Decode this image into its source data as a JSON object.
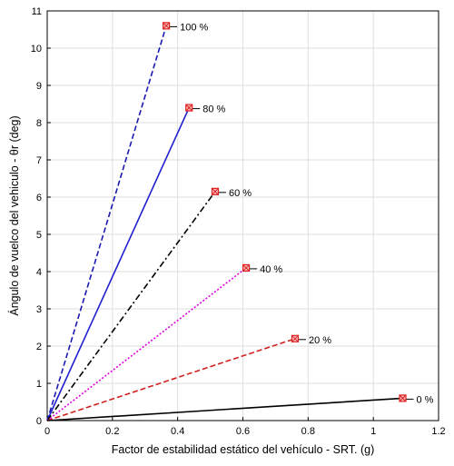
{
  "chart_data": {
    "type": "line",
    "title": "",
    "xlabel": "Factor de estabilidad estático del vehículo - SRT. (g)",
    "ylabel": "Ángulo de vuelco del vehiculo - θr (deg)",
    "xlim": [
      0,
      1.2
    ],
    "ylim": [
      0,
      11
    ],
    "xticks": [
      "0",
      "0.2",
      "0.4",
      "0.6",
      "0.8",
      "1",
      "1.2"
    ],
    "yticks": [
      "0",
      "1",
      "2",
      "3",
      "4",
      "5",
      "6",
      "7",
      "8",
      "9",
      "10",
      "11"
    ],
    "grid": true,
    "series": [
      {
        "label": "100 %",
        "x": [
          0,
          0.365
        ],
        "y": [
          0,
          10.6
        ],
        "color": "#1a1ab0",
        "style": "dashed"
      },
      {
        "label": "80 %",
        "x": [
          0,
          0.435
        ],
        "y": [
          0,
          8.4
        ],
        "color": "#2020d0",
        "style": "solid"
      },
      {
        "label": "60 %",
        "x": [
          0,
          0.515
        ],
        "y": [
          0,
          6.15
        ],
        "color": "#000000",
        "style": "dashdot"
      },
      {
        "label": "40 %",
        "x": [
          0,
          0.61
        ],
        "y": [
          0,
          4.1
        ],
        "color": "#e000e0",
        "style": "dotted"
      },
      {
        "label": "20 %",
        "x": [
          0,
          0.76
        ],
        "y": [
          0,
          2.2
        ],
        "color": "#d02020",
        "style": "dashed"
      },
      {
        "label": "0 %",
        "x": [
          0,
          1.09
        ],
        "y": [
          0,
          0.6
        ],
        "color": "#000000",
        "style": "solid"
      }
    ],
    "marker_color": "#e02020"
  }
}
